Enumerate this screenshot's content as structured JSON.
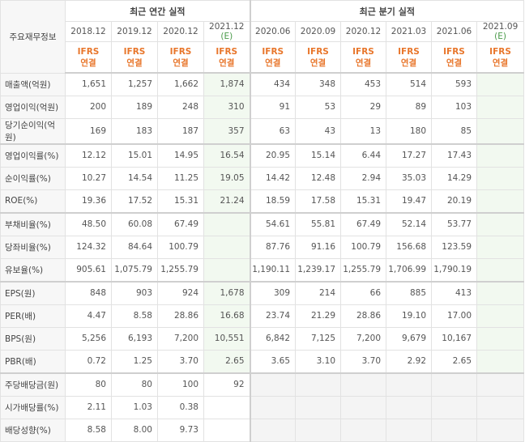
{
  "header": {
    "corner": "주요재무정보",
    "groups": [
      {
        "title": "최근 연간 실적",
        "span": 4
      },
      {
        "title": "최근 분기 실적",
        "span": 6
      }
    ],
    "periods": [
      {
        "date": "2018.12"
      },
      {
        "date": "2019.12"
      },
      {
        "date": "2020.12"
      },
      {
        "date": "2021.12",
        "mark": "(E)"
      },
      {
        "date": "2020.06"
      },
      {
        "date": "2020.09"
      },
      {
        "date": "2020.12"
      },
      {
        "date": "2021.03"
      },
      {
        "date": "2021.06"
      },
      {
        "date": "2021.09",
        "mark": "(E)"
      }
    ],
    "basis": [
      {
        "standard": "IFRS",
        "scope": "연결"
      },
      {
        "standard": "IFRS",
        "scope": "연결"
      },
      {
        "standard": "IFRS",
        "scope": "연결"
      },
      {
        "standard": "IFRS",
        "scope": "연결"
      },
      {
        "standard": "IFRS",
        "scope": "연결"
      },
      {
        "standard": "IFRS",
        "scope": "연결"
      },
      {
        "standard": "IFRS",
        "scope": "연결"
      },
      {
        "standard": "IFRS",
        "scope": "연결"
      },
      {
        "standard": "IFRS",
        "scope": "연결"
      },
      {
        "standard": "IFRS",
        "scope": "연결"
      }
    ]
  },
  "body": [
    [
      {
        "label": "매출액(억원)",
        "values": [
          "1,651",
          "1,257",
          "1,662",
          "1,874",
          "434",
          "348",
          "453",
          "514",
          "593",
          null
        ]
      },
      {
        "label": "영업이익(억원)",
        "values": [
          "200",
          "189",
          "248",
          "310",
          "91",
          "53",
          "29",
          "89",
          "103",
          null
        ]
      },
      {
        "label": "당기순이익(억원)",
        "values": [
          "169",
          "183",
          "187",
          "357",
          "63",
          "43",
          "13",
          "180",
          "85",
          null
        ]
      }
    ],
    [
      {
        "label": "영업이익률(%)",
        "values": [
          "12.12",
          "15.01",
          "14.95",
          "16.54",
          "20.95",
          "15.14",
          "6.44",
          "17.27",
          "17.43",
          null
        ]
      },
      {
        "label": "순이익률(%)",
        "values": [
          "10.27",
          "14.54",
          "11.25",
          "19.05",
          "14.42",
          "12.48",
          "2.94",
          "35.03",
          "14.29",
          null
        ]
      },
      {
        "label": "ROE(%)",
        "values": [
          "19.36",
          "17.52",
          "15.31",
          "21.24",
          "18.59",
          "17.58",
          "15.31",
          "19.47",
          "20.19",
          null
        ]
      }
    ],
    [
      {
        "label": "부채비율(%)",
        "values": [
          "48.50",
          "60.08",
          "67.49",
          null,
          "54.61",
          "55.81",
          "67.49",
          "52.14",
          "53.77",
          null
        ]
      },
      {
        "label": "당좌비율(%)",
        "values": [
          "124.32",
          "84.64",
          "100.79",
          null,
          "87.76",
          "91.16",
          "100.79",
          "156.68",
          "123.59",
          null
        ]
      },
      {
        "label": "유보율(%)",
        "values": [
          "905.61",
          "1,075.79",
          "1,255.79",
          null,
          "1,190.11",
          "1,239.17",
          "1,255.79",
          "1,706.99",
          "1,790.19",
          null
        ]
      }
    ],
    [
      {
        "label": "EPS(원)",
        "values": [
          "848",
          "903",
          "924",
          "1,678",
          "309",
          "214",
          "66",
          "885",
          "413",
          null
        ]
      },
      {
        "label": "PER(배)",
        "values": [
          "4.47",
          "8.58",
          "28.86",
          "16.68",
          "23.74",
          "21.29",
          "28.86",
          "19.10",
          "17.00",
          null
        ]
      },
      {
        "label": "BPS(원)",
        "values": [
          "5,256",
          "6,193",
          "7,200",
          "10,551",
          "6,842",
          "7,125",
          "7,200",
          "9,679",
          "10,167",
          null
        ]
      },
      {
        "label": "PBR(배)",
        "values": [
          "0.72",
          "1.25",
          "3.70",
          "2.65",
          "3.65",
          "3.10",
          "3.70",
          "2.92",
          "2.65",
          null
        ]
      }
    ],
    [
      {
        "label": "주당배당금(원)",
        "values": [
          "80",
          "80",
          "100",
          "92",
          null,
          null,
          null,
          null,
          null,
          null
        ]
      },
      {
        "label": "시가배당률(%)",
        "values": [
          "2.11",
          "1.03",
          "0.38",
          null,
          null,
          null,
          null,
          null,
          null,
          null
        ]
      },
      {
        "label": "배당성향(%)",
        "values": [
          "8.58",
          "8.00",
          "9.73",
          null,
          null,
          null,
          null,
          null,
          null,
          null
        ]
      }
    ]
  ]
}
